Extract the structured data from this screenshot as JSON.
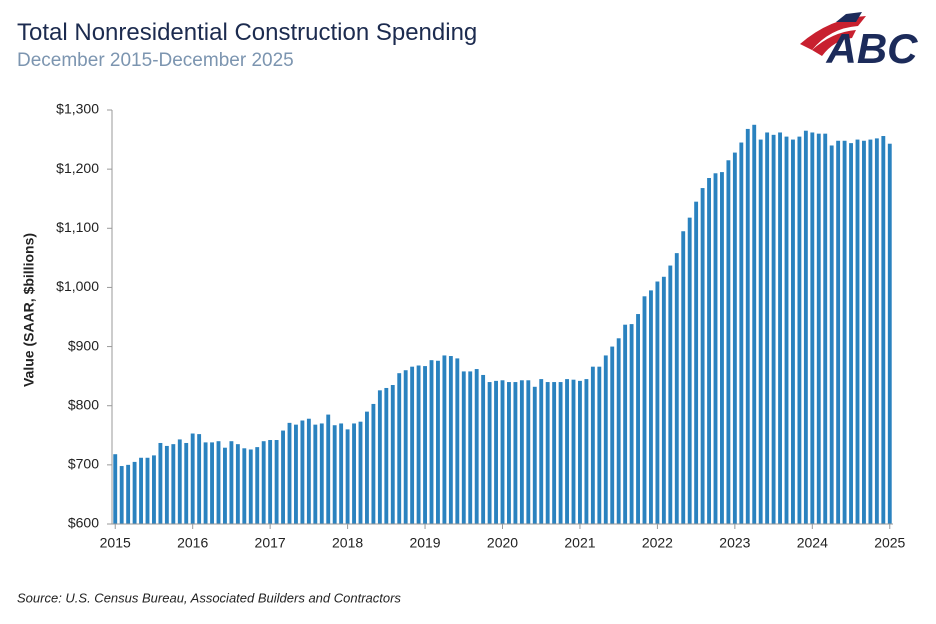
{
  "chart_data": {
    "type": "bar",
    "title": "Total Nonresidential Construction Spending",
    "subtitle": "December 2015-December 2025",
    "y_label": "Value (SAAR, $billions)",
    "source": "Source: U.S. Census Bureau, Associated Builders and Contractors",
    "logo": "ABC",
    "color": "#2a82bf",
    "categories": [
      "2015",
      null,
      null,
      null,
      null,
      null,
      null,
      null,
      null,
      null,
      null,
      null,
      "2016",
      null,
      null,
      null,
      null,
      null,
      null,
      null,
      null,
      null,
      null,
      null,
      "2017",
      null,
      null,
      null,
      null,
      null,
      null,
      null,
      null,
      null,
      null,
      null,
      "2018",
      null,
      null,
      null,
      null,
      null,
      null,
      null,
      null,
      null,
      null,
      null,
      "2019",
      null,
      null,
      null,
      null,
      null,
      null,
      null,
      null,
      null,
      null,
      null,
      "2020",
      null,
      null,
      null,
      null,
      null,
      null,
      null,
      null,
      null,
      null,
      null,
      "2021",
      null,
      null,
      null,
      null,
      null,
      null,
      null,
      null,
      null,
      null,
      null,
      "2022",
      null,
      null,
      null,
      null,
      null,
      null,
      null,
      null,
      null,
      null,
      null,
      "2023",
      null,
      null,
      null,
      null,
      null,
      null,
      null,
      null,
      null,
      null,
      null,
      "2024",
      null,
      null,
      null,
      null,
      null,
      null,
      null,
      null,
      null,
      null,
      null,
      "2025"
    ],
    "values": [
      718,
      698,
      700,
      705,
      712,
      712,
      716,
      737,
      732,
      735,
      743,
      737,
      753,
      752,
      738,
      738,
      740,
      729,
      740,
      735,
      728,
      726,
      730,
      740,
      742,
      742,
      758,
      771,
      768,
      775,
      778,
      768,
      770,
      785,
      767,
      770,
      760,
      770,
      773,
      790,
      803,
      826,
      830,
      835,
      855,
      860,
      866,
      868,
      867,
      877,
      876,
      885,
      884,
      880,
      858,
      858,
      862,
      852,
      840,
      842,
      843,
      840,
      840,
      843,
      843,
      832,
      845,
      840,
      840,
      840,
      845,
      844,
      842,
      845,
      866,
      866,
      885,
      900,
      914,
      937,
      938,
      955,
      985,
      995,
      1010,
      1018,
      1037,
      1058,
      1095,
      1118,
      1145,
      1168,
      1185,
      1193,
      1195,
      1215,
      1228,
      1245,
      1268,
      1275,
      1250,
      1262,
      1258,
      1262,
      1255,
      1250,
      1255,
      1265,
      1262,
      1260,
      1260,
      1240,
      1248,
      1248,
      1244,
      1250,
      1248,
      1250,
      1252,
      1256,
      1243
    ],
    "ylim": [
      600,
      1300
    ],
    "yticks": [
      {
        "value": 600,
        "label": "$600"
      },
      {
        "value": 700,
        "label": "$700"
      },
      {
        "value": 800,
        "label": "$800"
      },
      {
        "value": 900,
        "label": "$900"
      },
      {
        "value": 1000,
        "label": "$1,000"
      },
      {
        "value": 1100,
        "label": "$1,100"
      },
      {
        "value": 1200,
        "label": "$1,200"
      },
      {
        "value": 1300,
        "label": "$1,300"
      }
    ],
    "grid": false
  }
}
